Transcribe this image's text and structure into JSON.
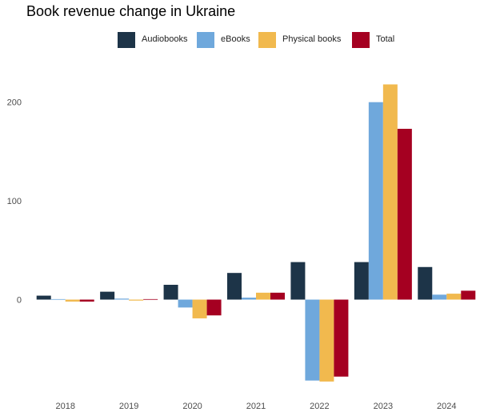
{
  "chart_data": {
    "type": "bar",
    "title": "Book revenue change in Ukraine",
    "xlabel": "",
    "ylabel": "",
    "categories": [
      "2018",
      "2019",
      "2020",
      "2021",
      "2022",
      "2023",
      "2024"
    ],
    "series": [
      {
        "name": "Audiobooks",
        "color": "#1d3448",
        "values": [
          4,
          8,
          15,
          27,
          38,
          38,
          33
        ]
      },
      {
        "name": "eBooks",
        "color": "#6fa8dc",
        "values": [
          0.5,
          1,
          -8,
          2,
          -82,
          200,
          5
        ]
      },
      {
        "name": "Physical books",
        "color": "#f1b94e",
        "values": [
          -2,
          -1,
          -19,
          7,
          -83,
          218,
          6
        ]
      },
      {
        "name": "Total",
        "color": "#a50021",
        "values": [
          -2,
          0.5,
          -16,
          7,
          -78,
          173,
          9
        ]
      }
    ],
    "yticks": [
      0,
      100,
      200
    ],
    "ylim": [
      -92,
      235
    ],
    "grid": false,
    "legend_position": "top"
  }
}
